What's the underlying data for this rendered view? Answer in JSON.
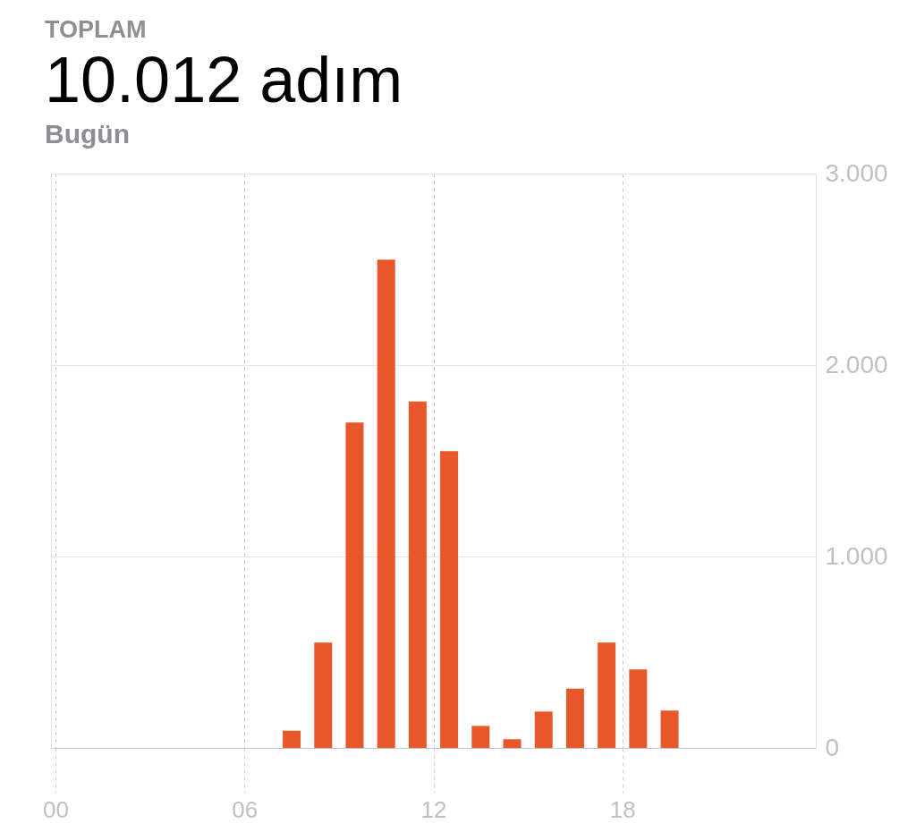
{
  "chart_data": {
    "type": "bar",
    "title": "TOPLAM",
    "subtitle": "10.012 adım",
    "annotations": [
      "Bugün"
    ],
    "x": [
      7.5,
      8.5,
      9.5,
      10.5,
      11.5,
      12.5,
      13.5,
      14.5,
      15.5,
      16.5,
      17.5,
      18.5,
      19.5
    ],
    "values": [
      90,
      550,
      1700,
      2550,
      1810,
      1550,
      115,
      45,
      190,
      310,
      550,
      410,
      195
    ],
    "color": "#e8572a",
    "xlim": [
      0,
      24
    ],
    "xticks": [
      {
        "value": 0,
        "label": "00"
      },
      {
        "value": 6,
        "label": "06"
      },
      {
        "value": 12,
        "label": "12"
      },
      {
        "value": 18,
        "label": "18"
      }
    ],
    "ylim": [
      0,
      3000
    ],
    "yticks": [
      0,
      {
        "value": 1000,
        "label": "1.000"
      },
      {
        "value": 2000,
        "label": "2.000"
      },
      {
        "value": 3000,
        "label": "3.000"
      }
    ],
    "grid": true
  }
}
